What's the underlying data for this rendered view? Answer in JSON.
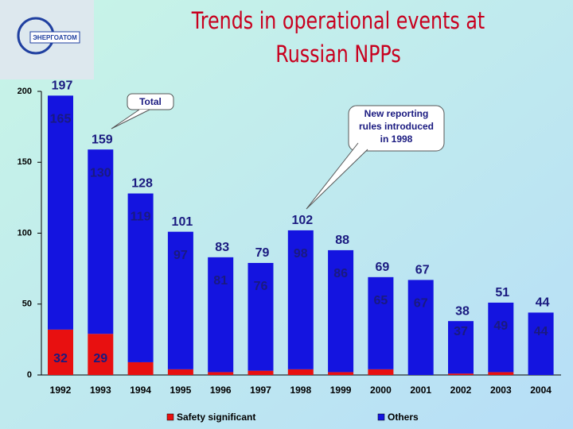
{
  "logo_text": "ЭНЕРГОАТОМ",
  "chart_data": {
    "type": "stacked_bar",
    "title_lines": [
      "Trends in operational events at",
      "Russian NPPs"
    ],
    "categories": [
      "1992",
      "1993",
      "1994",
      "1995",
      "1996",
      "1997",
      "1998",
      "1999",
      "2000",
      "2001",
      "2002",
      "2003",
      "2004"
    ],
    "series": [
      {
        "name": "Safety significant",
        "color": "#e81010",
        "values": [
          32,
          29,
          9,
          4,
          2,
          3,
          4,
          2,
          4,
          0,
          1,
          2,
          0
        ]
      },
      {
        "name": "Others",
        "color": "#1414e0",
        "values": [
          165,
          130,
          119,
          97,
          81,
          76,
          98,
          86,
          65,
          67,
          37,
          49,
          44
        ]
      }
    ],
    "totals": [
      197,
      159,
      128,
      101,
      83,
      79,
      102,
      88,
      69,
      67,
      38,
      51,
      44
    ],
    "annotations": [
      {
        "text_lines": [
          "Total"
        ]
      },
      {
        "text_lines": [
          "New reporting",
          "rules introduced",
          "in 1998"
        ]
      }
    ],
    "ylim": [
      0,
      200
    ],
    "yticks": [
      0,
      50,
      100,
      150,
      200
    ]
  }
}
